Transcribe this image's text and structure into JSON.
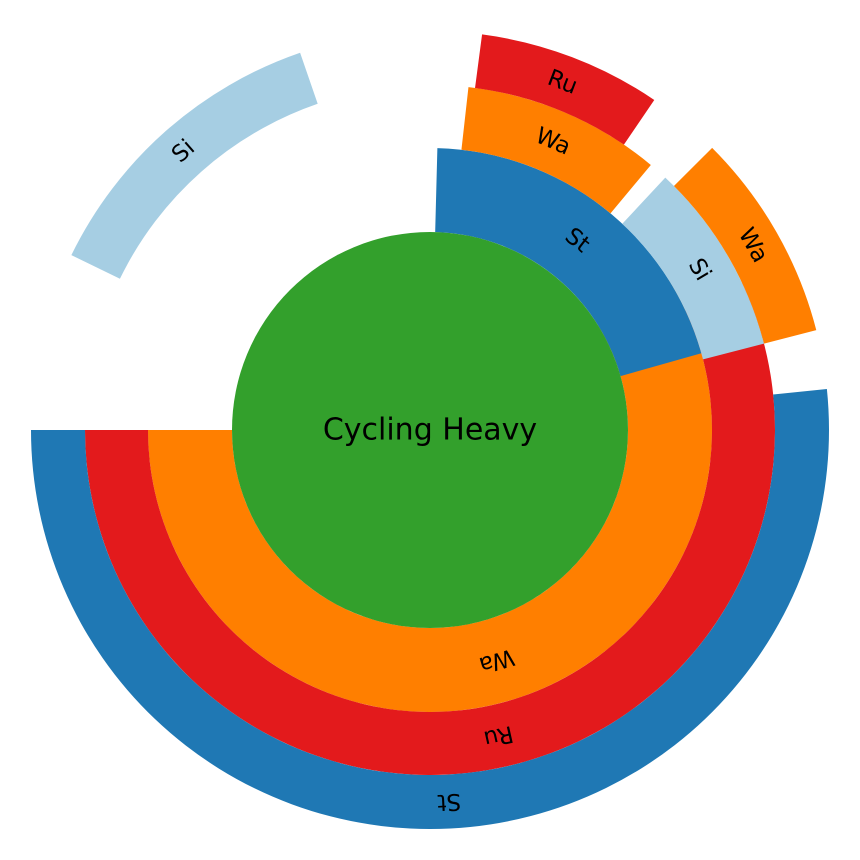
{
  "chart_data": {
    "type": "sunburst",
    "title": "",
    "root": {
      "label": "Cycling Heavy",
      "color": "#33a02c"
    },
    "hierarchy": [
      {
        "label": "Wa",
        "color": "#ff7f00",
        "start_deg": 180,
        "end_deg": 392.2,
        "children": [
          {
            "label": "Ru",
            "color": "#e31a1c",
            "start_deg": 180,
            "end_deg": 385.2,
            "children": [
              {
                "label": "St",
                "color": "#1f78b4",
                "start_deg": 180,
                "end_deg": 365.9
              },
              {
                "label": "Si",
                "color": "#a6cee3",
                "start_deg": 109,
                "end_deg": 154
              }
            ]
          }
        ]
      },
      {
        "label": "St",
        "color": "#1f78b4",
        "start_deg": 15.8,
        "end_deg": 88.5,
        "children": [
          {
            "label": "Wa",
            "color": "#ff7f00",
            "start_deg": 50.2,
            "end_deg": 83.6,
            "children": [
              {
                "label": "Ru",
                "color": "#e31a1c",
                "start_deg": 55.8,
                "end_deg": 82.5
              }
            ]
          },
          {
            "label": "Si",
            "color": "#a6cee3",
            "start_deg": 14.5,
            "end_deg": 47,
            "children": [
              {
                "label": "Wa",
                "color": "#ff7f00",
                "start_deg": 14.5,
                "end_deg": 45
              }
            ]
          }
        ]
      }
    ]
  }
}
